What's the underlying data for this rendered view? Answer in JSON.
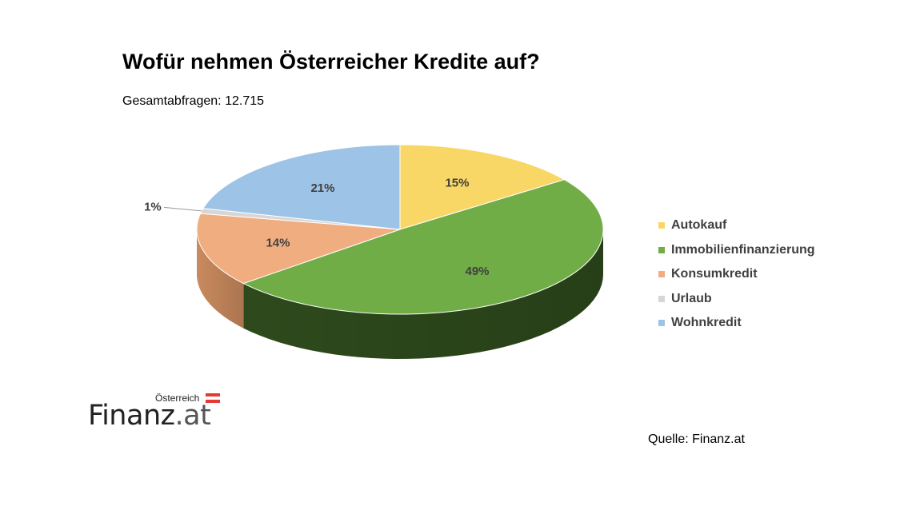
{
  "chart_data": {
    "type": "pie",
    "title": "Wofür nehmen Österreicher Kredite auf?",
    "subtitle": "Gesamtabfragen: 12.715",
    "legend_position": "right",
    "slices": [
      {
        "label": "Autokauf",
        "value": 15,
        "display": "15%",
        "color": "#F9D766",
        "dark": "#b89a3a"
      },
      {
        "label": "Immobilienfinanzierung",
        "value": 49,
        "display": "49%",
        "color": "#70AD47",
        "dark": "#2e4a1c"
      },
      {
        "label": "Konsumkredit",
        "value": 14,
        "display": "14%",
        "color": "#F0AD80",
        "dark": "#c98a5e"
      },
      {
        "label": "Urlaub",
        "value": 1,
        "display": "1%",
        "color": "#D6D6D6",
        "dark": "#a8a8a8"
      },
      {
        "label": "Wohnkredit",
        "value": 21,
        "display": "21%",
        "color": "#9DC3E6",
        "dark": "#6f93b8"
      }
    ]
  },
  "logo": {
    "country": "Österreich",
    "word": "Finanz",
    "suffix": ".at",
    "flag_colors": [
      "#E53935",
      "#FFFFFF",
      "#E53935"
    ]
  },
  "source": "Quelle: Finanz.at"
}
